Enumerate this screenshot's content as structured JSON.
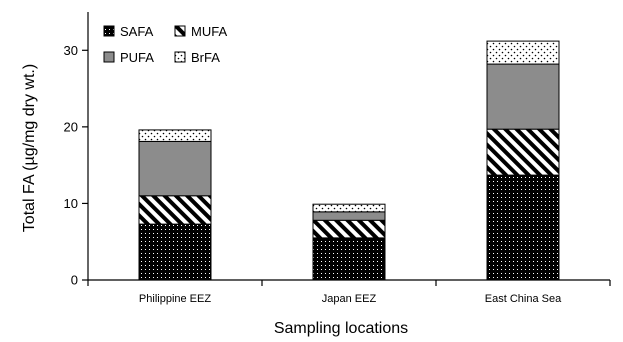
{
  "chart_data": {
    "type": "bar",
    "stacked": true,
    "title": "",
    "xlabel": "Sampling locations",
    "ylabel": "Total FA (µg/mg dry wt.)",
    "ylim": [
      0,
      35
    ],
    "yticks": [
      0,
      10,
      20,
      30
    ],
    "grid": false,
    "legend_position": "top-left",
    "categories": [
      "Philippine EEZ",
      "Japan EEZ",
      "East China Sea"
    ],
    "series": [
      {
        "name": "SAFA",
        "pattern": "dense-dots",
        "color": "#000000",
        "values": [
          7.3,
          5.5,
          13.7
        ]
      },
      {
        "name": "MUFA",
        "pattern": "diagonal-stripes",
        "color": "#ffffff",
        "values": [
          3.7,
          2.3,
          6.0
        ]
      },
      {
        "name": "PUFA",
        "pattern": "solid-gray",
        "color": "#8c8c8c",
        "values": [
          7.1,
          1.1,
          8.5
        ]
      },
      {
        "name": "BrFA",
        "pattern": "sparse-dots",
        "color": "#ffffff",
        "values": [
          1.5,
          1.0,
          3.0
        ]
      }
    ]
  }
}
